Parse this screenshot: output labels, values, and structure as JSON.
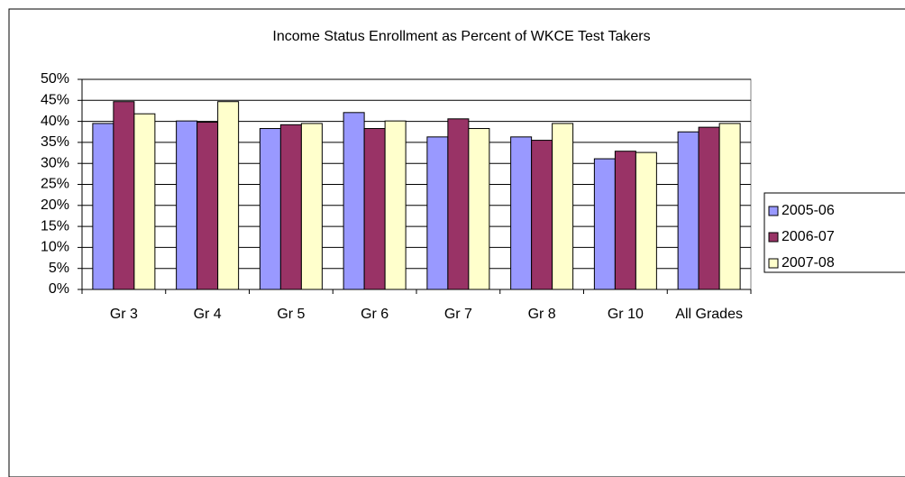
{
  "chart_data": {
    "type": "bar",
    "title": "Income Status Enrollment as Percent of WKCE Test Takers",
    "categories": [
      "Gr 3",
      "Gr 4",
      "Gr 5",
      "Gr 6",
      "Gr 7",
      "Gr 8",
      "Gr 10",
      "All Grades"
    ],
    "series": [
      {
        "name": "2005-06",
        "color": "#9999ff",
        "values": [
          39.5,
          40.1,
          38.3,
          42.1,
          36.3,
          36.3,
          31.1,
          37.5
        ]
      },
      {
        "name": "2006-07",
        "color": "#993366",
        "values": [
          44.7,
          39.8,
          39.2,
          38.3,
          40.6,
          35.5,
          32.9,
          38.6
        ]
      },
      {
        "name": "2007-08",
        "color": "#ffffcc",
        "values": [
          41.8,
          44.7,
          39.5,
          40.1,
          38.3,
          39.5,
          32.6,
          39.5
        ]
      }
    ],
    "ylim": [
      0,
      50
    ],
    "yticks": [
      {
        "value": 0,
        "label": "0%"
      },
      {
        "value": 5,
        "label": "5%"
      },
      {
        "value": 10,
        "label": "10%"
      },
      {
        "value": 15,
        "label": "15%"
      },
      {
        "value": 20,
        "label": "20%"
      },
      {
        "value": 25,
        "label": "25%"
      },
      {
        "value": 30,
        "label": "30%"
      },
      {
        "value": 35,
        "label": "35%"
      },
      {
        "value": 40,
        "label": "40%"
      },
      {
        "value": 45,
        "label": "45%"
      },
      {
        "value": 50,
        "label": "50%"
      }
    ],
    "grid": true,
    "legend": "right"
  }
}
